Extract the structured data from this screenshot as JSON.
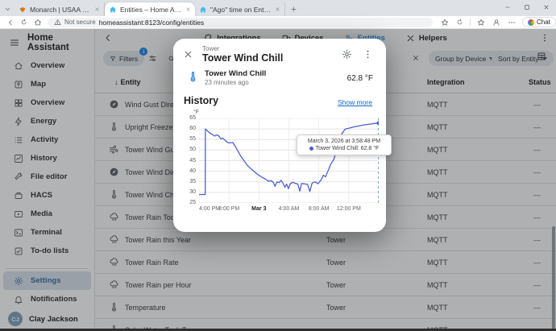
{
  "browser": {
    "tabs": [
      {
        "title": "Monarch | USAA CLASSIC CHECKI",
        "favicon": "monarch",
        "active": false
      },
      {
        "title": "Entities – Home Assistant",
        "favicon": "ha",
        "active": true
      },
      {
        "title": "\"Ago\" time on Entity graph - Conf",
        "favicon": "ha",
        "active": false
      }
    ],
    "address": {
      "security": "Not secure",
      "url": "homeassistant:8123/config/entities"
    },
    "chat_label": "Chat"
  },
  "sidebar": {
    "title": "Home Assistant",
    "items": [
      {
        "icon": "home",
        "label": "Overview"
      },
      {
        "icon": "map",
        "label": "Map"
      },
      {
        "icon": "grid",
        "label": "Overview"
      },
      {
        "icon": "lightning",
        "label": "Energy"
      },
      {
        "icon": "list",
        "label": "Activity"
      },
      {
        "icon": "chart",
        "label": "History"
      },
      {
        "icon": "wrench",
        "label": "File editor"
      },
      {
        "icon": "hacs",
        "label": "HACS"
      },
      {
        "icon": "media",
        "label": "Media"
      },
      {
        "icon": "terminal",
        "label": "Terminal"
      },
      {
        "icon": "todo",
        "label": "To-do lists"
      }
    ],
    "bottom_items": [
      {
        "icon": "gear",
        "label": "Settings",
        "selected": true
      },
      {
        "icon": "bell",
        "label": "Notifications",
        "selected": false
      }
    ],
    "user": {
      "initials": "CJ",
      "name": "Clay Jackson"
    }
  },
  "topnav": {
    "tabs": [
      {
        "icon": "puzzle",
        "label": "Integrations",
        "active": false
      },
      {
        "icon": "devices",
        "label": "Devices",
        "active": false
      },
      {
        "icon": "entities",
        "label": "Entities",
        "active": true
      },
      {
        "icon": "helpers",
        "label": "Helpers",
        "active": false
      }
    ]
  },
  "toolbar": {
    "filters_label": "Filters",
    "filters_badge": "1",
    "group_by": "Group by Device",
    "sort_by": "Sort by Entity"
  },
  "table": {
    "columns": {
      "entity": "Entity",
      "integration": "Integration",
      "status": "Status"
    },
    "rows": [
      {
        "icon": "compass",
        "name": "Wind Gust Direction",
        "device": "",
        "integration": "MQTT",
        "status": "—"
      },
      {
        "icon": "thermometer",
        "name": "Upright Freezer",
        "device": "",
        "integration": "MQTT",
        "status": "—"
      },
      {
        "icon": "wind",
        "name": "Tower Wind Gust",
        "device": "",
        "integration": "MQTT",
        "status": "—"
      },
      {
        "icon": "compass",
        "name": "Tower Wind Direction",
        "device": "",
        "integration": "MQTT",
        "status": "—"
      },
      {
        "icon": "thermometer",
        "name": "Tower Wind Chill",
        "device": "",
        "integration": "MQTT",
        "status": "—"
      },
      {
        "icon": "rain",
        "name": "Tower Rain Today",
        "device": "",
        "integration": "MQTT",
        "status": "—"
      },
      {
        "icon": "rain",
        "name": "Tower Rain this Year",
        "device": "Tower",
        "integration": "MQTT",
        "status": "—"
      },
      {
        "icon": "rain",
        "name": "Tower Rain Rate",
        "device": "Tower",
        "integration": "MQTT",
        "status": "—"
      },
      {
        "icon": "rain",
        "name": "Tower Rain per Hour",
        "device": "Tower",
        "integration": "MQTT",
        "status": "—"
      },
      {
        "icon": "thermometer",
        "name": "Temperature",
        "device": "Tower",
        "integration": "MQTT",
        "status": "—"
      },
      {
        "icon": "thermometer",
        "name": "Solar Water Tank Top",
        "device": "—",
        "integration": "MQTT",
        "status": "—"
      }
    ]
  },
  "dialog": {
    "breadcrumb": "Tower",
    "title": "Tower Wind Chill",
    "entity": {
      "name": "Tower Wind Chill",
      "last_changed": "23 minutes ago",
      "state": "62.8 °F"
    },
    "history": {
      "heading": "History",
      "show_more": "Show more"
    },
    "tooltip": {
      "timestamp": "March 3, 2026 at 3:58:48 PM",
      "entity_line": "Tower Wind Chill: 62.8 °F"
    }
  },
  "chart_data": {
    "type": "line",
    "unit": "°F",
    "ylim": [
      25,
      65
    ],
    "y_step": 5,
    "x_range_hours": 24,
    "x_ticks": [
      {
        "t": 0,
        "label": "4:00 PM",
        "bold": false
      },
      {
        "t": 4,
        "label": "8:00 PM",
        "bold": false
      },
      {
        "t": 8,
        "label": "Mar 3",
        "bold": true
      },
      {
        "t": 12,
        "label": "4:00 AM",
        "bold": false
      },
      {
        "t": 16,
        "label": "8:00 AM",
        "bold": false
      },
      {
        "t": 20,
        "label": "12:00 PM",
        "bold": false
      }
    ],
    "line_color": "#4d5fd0",
    "marker_color": "#6ea8dc",
    "current_time_t": 23.95,
    "grid": true,
    "series": [
      {
        "name": "Tower Wind Chill",
        "points": [
          [
            0,
            29
          ],
          [
            0.83,
            29
          ],
          [
            0.85,
            60
          ],
          [
            1.1,
            59.2
          ],
          [
            1.45,
            58
          ],
          [
            1.8,
            57.4
          ],
          [
            2.1,
            56.6
          ],
          [
            2.35,
            57.2
          ],
          [
            2.6,
            56.9
          ],
          [
            2.9,
            55.4
          ],
          [
            3.2,
            55.6
          ],
          [
            3.5,
            54.6
          ],
          [
            3.8,
            53.7
          ],
          [
            4.1,
            53.4
          ],
          [
            4.5,
            53.6
          ],
          [
            4.8,
            52
          ],
          [
            5.2,
            49.5
          ],
          [
            5.6,
            47
          ],
          [
            6.0,
            45
          ],
          [
            6.4,
            43
          ],
          [
            6.9,
            41.3
          ],
          [
            7.4,
            39.8
          ],
          [
            7.9,
            38.3
          ],
          [
            8.4,
            37.2
          ],
          [
            8.9,
            36.2
          ],
          [
            9.3,
            35.2
          ],
          [
            9.6,
            35.6
          ],
          [
            9.9,
            34.8
          ],
          [
            10.15,
            32.9
          ],
          [
            10.4,
            34.9
          ],
          [
            10.7,
            34.6
          ],
          [
            10.95,
            35.7
          ],
          [
            11.2,
            34.5
          ],
          [
            11.45,
            32.4
          ],
          [
            11.7,
            33.9
          ],
          [
            11.95,
            31.8
          ],
          [
            12.2,
            34.2
          ],
          [
            12.5,
            34.7
          ],
          [
            12.9,
            34.3
          ],
          [
            13.2,
            33.9
          ],
          [
            13.45,
            30.6
          ],
          [
            13.7,
            34.2
          ],
          [
            14.1,
            34.0
          ],
          [
            14.5,
            33.8
          ],
          [
            14.8,
            30.4
          ],
          [
            15.1,
            34.4
          ],
          [
            15.5,
            35.0
          ],
          [
            15.9,
            34.1
          ],
          [
            16.3,
            35.9
          ],
          [
            16.6,
            38.1
          ],
          [
            16.9,
            37.4
          ],
          [
            17.2,
            39.9
          ],
          [
            17.6,
            43.4
          ],
          [
            18.0,
            45.6
          ],
          [
            18.4,
            50.2
          ],
          [
            18.8,
            54.8
          ],
          [
            19.1,
            57.8
          ],
          [
            19.5,
            59.9
          ],
          [
            20.0,
            60.3
          ],
          [
            20.6,
            60.9
          ],
          [
            21.3,
            61.4
          ],
          [
            22.0,
            61.9
          ],
          [
            22.8,
            62.3
          ],
          [
            23.5,
            62.6
          ],
          [
            23.95,
            62.8
          ]
        ]
      }
    ]
  }
}
